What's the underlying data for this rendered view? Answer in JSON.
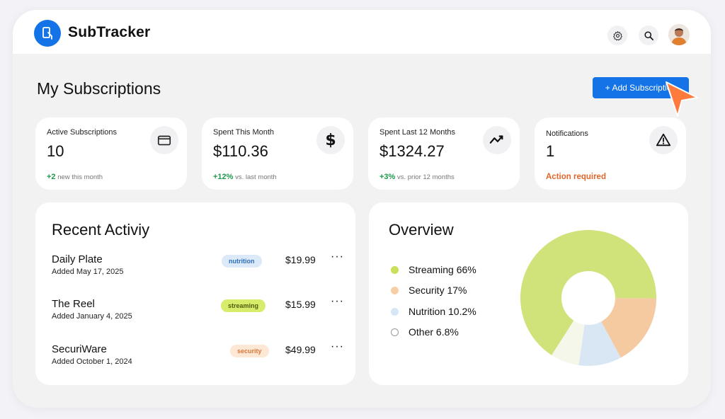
{
  "app": {
    "title": "SubTracker"
  },
  "header": {
    "icons": [
      "gear-icon",
      "search-icon",
      "avatar"
    ]
  },
  "page": {
    "title": "My Subscriptions",
    "add_button": "+ Add Subscription"
  },
  "stats": [
    {
      "label": "Active Subscriptions",
      "value": "10",
      "delta": "+2",
      "note": "new this month",
      "icon": "card-icon"
    },
    {
      "label": "Spent This Month",
      "value": "$110.36",
      "delta": "+12%",
      "note": "vs. last month",
      "icon": "dollar-icon"
    },
    {
      "label": "Spent Last 12 Months",
      "value": "$1324.27",
      "delta": "+3%",
      "note": "vs. prior 12 months",
      "icon": "trend-icon"
    },
    {
      "label": "Notifications",
      "value": "1",
      "note": "Action required",
      "icon": "warning-icon"
    }
  ],
  "activity": {
    "title": "Recent Activiy",
    "items": [
      {
        "name": "Daily Plate",
        "date": "Added May 17, 2025",
        "tag": "nutrition",
        "price": "$19.99"
      },
      {
        "name": "The Reel",
        "date": "Added January 4, 2025",
        "tag": "streaming",
        "price": "$15.99"
      },
      {
        "name": "SecuriWare",
        "date": "Added October 1, 2024",
        "tag": "security",
        "price": "$49.99"
      }
    ],
    "more": "···"
  },
  "overview": {
    "title": "Overview",
    "legend": [
      {
        "label": "Streaming 66%",
        "color": "#c9e05a"
      },
      {
        "label": "Security 17%",
        "color": "#f7cfa6"
      },
      {
        "label": "Nutrition 10.2%",
        "color": "#d6e6f5"
      },
      {
        "label": "Other 6.8%",
        "color": "#ffffff"
      }
    ]
  },
  "colors": {
    "accent": "#1473e6",
    "positive": "#1c9a4a",
    "alert": "#e2662b",
    "tag_nutrition_bg": "#dbe9f8",
    "tag_nutrition_fg": "#2e6fb7",
    "tag_streaming_bg": "#d6ec6a",
    "tag_streaming_fg": "#4f5e10",
    "tag_security_bg": "#fde8d6",
    "tag_security_fg": "#d8783a"
  },
  "chart_data": {
    "type": "pie",
    "categories": [
      "Streaming",
      "Security",
      "Nutrition",
      "Other"
    ],
    "values": [
      66,
      17,
      10.2,
      6.8
    ],
    "title": "Overview"
  }
}
